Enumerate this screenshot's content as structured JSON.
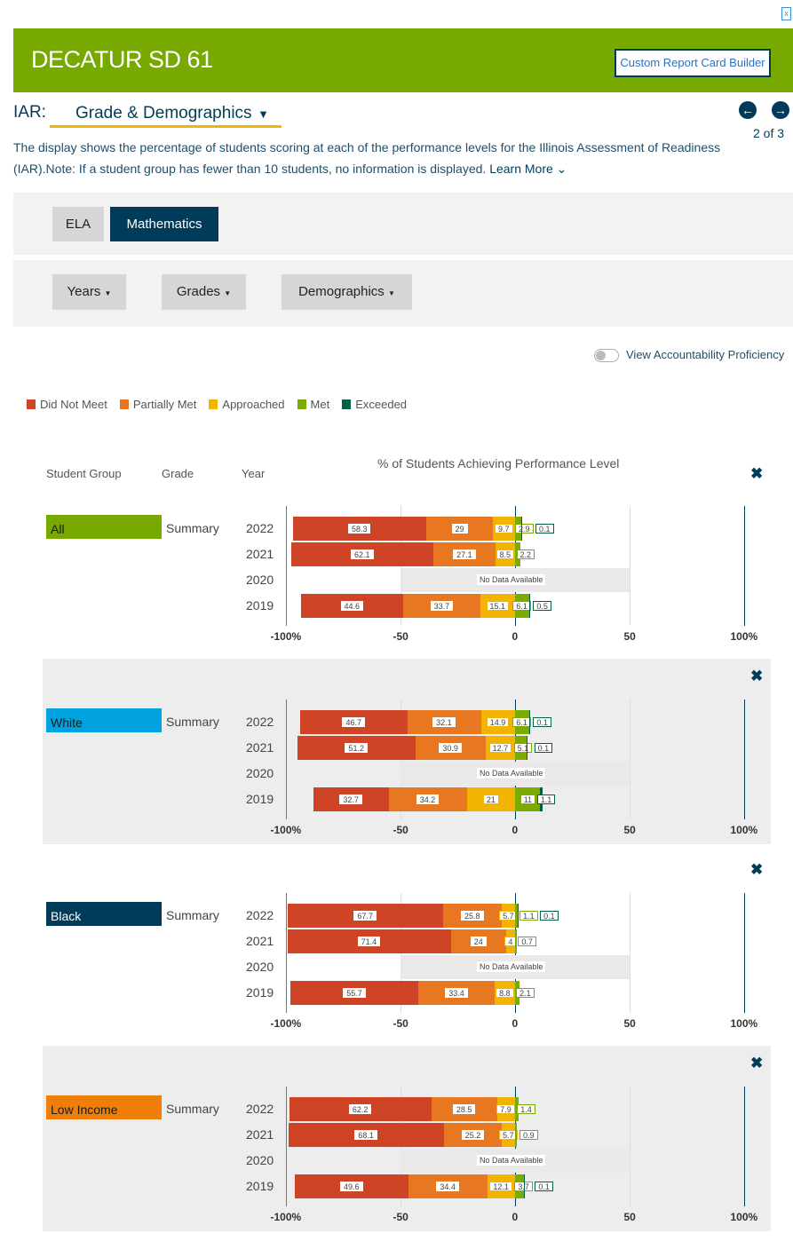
{
  "header": {
    "title": "DECATUR SD 61",
    "custom_builder": "Custom Report Card Builder",
    "excel_icon": "excel-export-icon"
  },
  "selector": {
    "label": "IAR:",
    "value": "Grade & Demographics",
    "page": "2 of 3"
  },
  "description": "The display shows the percentage of students scoring at each of the performance levels for the Illinois Assessment of Readiness (IAR).Note: If a student group has fewer than 10 students, no information is displayed.",
  "learn_more": "Learn More",
  "tabs": [
    {
      "label": "ELA",
      "active": false
    },
    {
      "label": "Mathematics",
      "active": true
    }
  ],
  "filters": [
    "Years",
    "Grades",
    "Demographics"
  ],
  "toggle": {
    "label": "View Accountability Proficiency",
    "on": false
  },
  "legend": [
    {
      "label": "Did Not Meet",
      "color": "#cf4327"
    },
    {
      "label": "Partially Met",
      "color": "#e87722"
    },
    {
      "label": "Approached",
      "color": "#f2b400"
    },
    {
      "label": "Met",
      "color": "#7aab00"
    },
    {
      "label": "Exceeded",
      "color": "#00614a"
    }
  ],
  "columns": {
    "group": "Student Group",
    "grade": "Grade",
    "year": "Year",
    "chart_title": "% of Students Achieving Performance Level"
  },
  "chart_data": {
    "type": "diverging-stacked-bar",
    "title": "% of Students Achieving Performance Level",
    "xlim": [
      -100,
      100
    ],
    "x_ticks": [
      "-100%",
      "-50",
      "0",
      "50",
      "100%"
    ],
    "no_data_label": "No Data Available",
    "series": [
      "Did Not Meet",
      "Partially Met",
      "Approached",
      "Met",
      "Exceeded"
    ],
    "groups": [
      {
        "name": "All",
        "color": "#78a900",
        "text": "#1a1a1a",
        "grade": "Summary",
        "rows": [
          {
            "year": "2022",
            "values": [
              58.3,
              29,
              9.7,
              2.9,
              0.1
            ]
          },
          {
            "year": "2021",
            "values": [
              62.1,
              27.1,
              8.5,
              2.2,
              null
            ]
          },
          {
            "year": "2020",
            "values": null
          },
          {
            "year": "2019",
            "values": [
              44.6,
              33.7,
              15.1,
              6.1,
              0.5
            ]
          }
        ]
      },
      {
        "name": "White",
        "color": "#00a3e0",
        "text": "#1a1a1a",
        "grade": "Summary",
        "rows": [
          {
            "year": "2022",
            "values": [
              46.7,
              32.1,
              14.9,
              6.1,
              0.1
            ]
          },
          {
            "year": "2021",
            "values": [
              51.2,
              30.9,
              12.7,
              5.1,
              0.1
            ]
          },
          {
            "year": "2020",
            "values": null
          },
          {
            "year": "2019",
            "values": [
              32.7,
              34.2,
              21,
              11,
              1.1
            ]
          }
        ]
      },
      {
        "name": "Black",
        "color": "#003c5a",
        "text": "#ffffff",
        "grade": "Summary",
        "rows": [
          {
            "year": "2022",
            "values": [
              67.7,
              25.8,
              5.7,
              1.1,
              0.1
            ]
          },
          {
            "year": "2021",
            "values": [
              71.4,
              24,
              4,
              0.7,
              null
            ]
          },
          {
            "year": "2020",
            "values": null
          },
          {
            "year": "2019",
            "values": [
              55.7,
              33.4,
              8.8,
              2.1,
              null
            ]
          }
        ]
      },
      {
        "name": "Low Income",
        "color": "#f07f09",
        "text": "#1a1a1a",
        "grade": "Summary",
        "rows": [
          {
            "year": "2022",
            "values": [
              62.2,
              28.5,
              7.9,
              1.4,
              null
            ]
          },
          {
            "year": "2021",
            "values": [
              68.1,
              25.2,
              5.7,
              0.9,
              null
            ]
          },
          {
            "year": "2020",
            "values": null
          },
          {
            "year": "2019",
            "values": [
              49.6,
              34.4,
              12.1,
              3.7,
              0.1
            ]
          }
        ]
      }
    ]
  }
}
